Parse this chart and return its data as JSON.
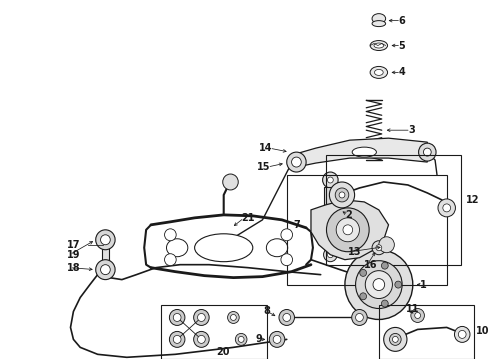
{
  "bg_color": "#ffffff",
  "figsize": [
    4.9,
    3.6
  ],
  "dpi": 100,
  "line_color": "#1a1a1a",
  "label_color": "#1a1a1a",
  "font_size": 7.0,
  "arrow_lw": 0.55,
  "arrow_ms": 5
}
